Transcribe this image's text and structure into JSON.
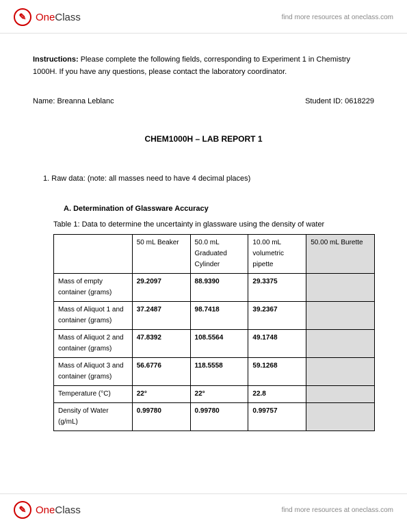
{
  "brand": {
    "one": "One",
    "class": "Class",
    "glyph": "✎",
    "link_text": "find more resources at oneclass.com"
  },
  "doc": {
    "instructions_label": "Instructions:",
    "instructions_text": "Please complete the following fields, corresponding to Experiment 1 in Chemistry 1000H. If you have any questions, please contact the laboratory coordinator.",
    "name_label": "Name:",
    "name_value": "Breanna Leblanc",
    "student_id_label": "Student ID:",
    "student_id_value": "0618229",
    "title": "CHEM1000H – LAB REPORT 1",
    "item_number": "1.",
    "item_text": "Raw data: (note: all masses need to have 4 decimal places)",
    "section_letter": "A.",
    "section_title": "Determination of Glassware Accuracy",
    "table_caption": "Table 1: Data to determine the uncertainty in glassware using the density of water"
  },
  "table": {
    "columns": [
      "50 mL Beaker",
      "50.0 mL Graduated Cylinder",
      "10.00 mL volumetric pipette",
      "50.00 mL Burette"
    ],
    "column_widths": [
      "85px",
      "85px",
      "85px",
      "100px"
    ],
    "shaded_column_index": 3,
    "rows": [
      {
        "label": "Mass of empty container (grams)",
        "values": [
          "29.2097",
          "88.9390",
          "29.3375",
          ""
        ]
      },
      {
        "label": "Mass of Aliquot 1 and container (grams)",
        "values": [
          "37.2487",
          "98.7418",
          "39.2367",
          ""
        ]
      },
      {
        "label": "Mass of Aliquot 2 and container (grams)",
        "values": [
          "47.8392",
          "108.5564",
          "49.1748",
          ""
        ]
      },
      {
        "label": "Mass of Aliquot 3 and container (grams)",
        "values": [
          "56.6776",
          "118.5558",
          "59.1268",
          ""
        ]
      },
      {
        "label": "Temperature (°C)",
        "values": [
          "22°",
          "22°",
          "22.8",
          ""
        ]
      },
      {
        "label": "Density of Water (g/mL)",
        "values": [
          "0.99780",
          "0.99780",
          "0.99757",
          ""
        ]
      }
    ],
    "header_bg": "#ffffff",
    "shaded_bg": "#dcdcdc",
    "border_color": "#000000",
    "font_size_pt": 10
  }
}
